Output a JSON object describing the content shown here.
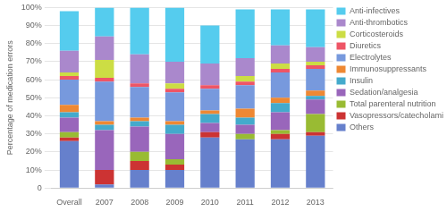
{
  "chart_data": {
    "type": "bar",
    "stacked": true,
    "categories": [
      "Overall",
      "2007",
      "2008",
      "2009",
      "2010",
      "2011",
      "2012",
      "2013"
    ],
    "series": [
      {
        "name": "Others",
        "color": "#6680cc",
        "values": [
          26,
          2,
          10,
          10,
          28,
          27,
          27,
          29
        ]
      },
      {
        "name": "Vasopressors/catecholamines",
        "color": "#cc3333",
        "values": [
          2,
          8,
          5,
          3,
          3,
          0,
          3,
          2
        ]
      },
      {
        "name": "Total parenteral nutrition",
        "color": "#99bb33",
        "values": [
          3,
          0,
          5,
          3,
          0,
          3,
          2,
          10
        ]
      },
      {
        "name": "Sedation/analgesia",
        "color": "#9966bb",
        "values": [
          8,
          22,
          14,
          14,
          5,
          5,
          10,
          8
        ]
      },
      {
        "name": "Insulin",
        "color": "#44aacc",
        "values": [
          3,
          3,
          3,
          5,
          5,
          4,
          5,
          2
        ]
      },
      {
        "name": "Immunosuppressants",
        "color": "#ee8833",
        "values": [
          4,
          2,
          2,
          2,
          2,
          5,
          3,
          3
        ]
      },
      {
        "name": "Electrolytes",
        "color": "#7799dd",
        "values": [
          14,
          22,
          17,
          16,
          12,
          13,
          14,
          12
        ]
      },
      {
        "name": "Diuretics",
        "color": "#ee5566",
        "values": [
          2,
          2,
          2,
          2,
          2,
          2,
          2,
          2
        ]
      },
      {
        "name": "Corticosteroids",
        "color": "#ccdd44",
        "values": [
          2,
          10,
          0,
          3,
          0,
          3,
          3,
          2
        ]
      },
      {
        "name": "Anti-thrombotics",
        "color": "#aa88cc",
        "values": [
          12,
          13,
          16,
          12,
          12,
          10,
          10,
          8
        ]
      },
      {
        "name": "Anti-infectives",
        "color": "#55ccee",
        "values": [
          22,
          16,
          26,
          30,
          21,
          27,
          20,
          21
        ]
      }
    ],
    "ylabel": "Percentage of medication errors",
    "ylim": [
      0,
      100
    ],
    "yticks": [
      0,
      {
        "value": 10,
        "label": "10%"
      },
      {
        "value": 20,
        "label": "20%"
      },
      {
        "value": 30,
        "label": "30%"
      },
      {
        "value": 40,
        "label": "40%"
      },
      {
        "value": 50,
        "label": "50%"
      },
      {
        "value": 60,
        "label": "60%"
      },
      {
        "value": 70,
        "label": "70%"
      },
      {
        "value": 80,
        "label": "80%"
      },
      {
        "value": 90,
        "label": "90%"
      },
      {
        "value": 100,
        "label": "100%"
      }
    ],
    "grid": true,
    "legend": "right"
  }
}
